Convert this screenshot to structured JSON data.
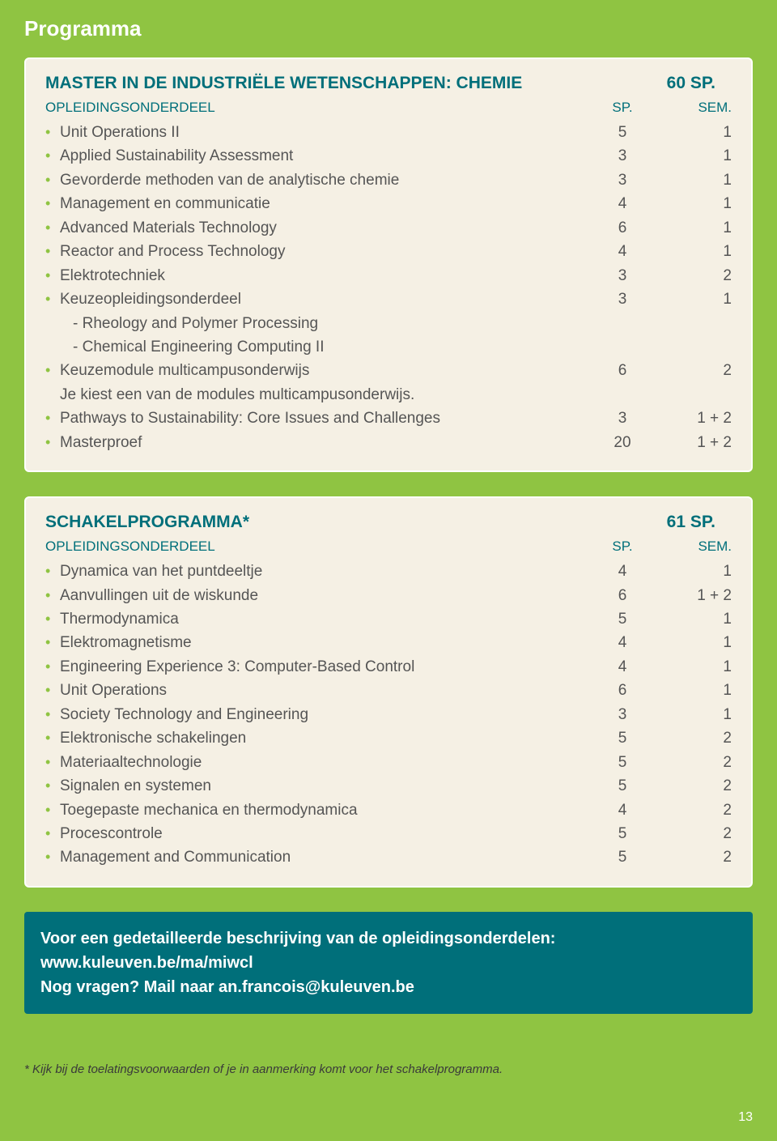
{
  "page_title": "Programma",
  "colors": {
    "background": "#8fc442",
    "box_bg": "#f5f0e4",
    "box_border": "#ffffff",
    "accent_teal": "#006f7a",
    "text": "#555555",
    "bullet": "#8fc442"
  },
  "table1": {
    "title": "MASTER IN DE INDUSTRIËLE WETENSCHAPPEN: CHEMIE",
    "title_sp": "60 SP.",
    "header_label": "OPLEIDINGSONDERDEEL",
    "header_sp": "SP.",
    "header_sem": "SEM.",
    "rows": [
      {
        "label": "Unit Operations II",
        "sp": "5",
        "sem": "1"
      },
      {
        "label": "Applied Sustainability Assessment",
        "sp": "3",
        "sem": "1"
      },
      {
        "label": "Gevorderde methoden van de analytische chemie",
        "sp": "3",
        "sem": "1"
      },
      {
        "label": "Management en communicatie",
        "sp": "4",
        "sem": "1"
      },
      {
        "label": "Advanced Materials Technology",
        "sp": "6",
        "sem": "1"
      },
      {
        "label": "Reactor and Process Technology",
        "sp": "4",
        "sem": "1"
      },
      {
        "label": "Elektrotechniek",
        "sp": "3",
        "sem": "2"
      },
      {
        "label": "Keuzeopleidingsonderdeel",
        "sp": "3",
        "sem": "1",
        "sub": [
          "- Rheology and Polymer Processing",
          "- Chemical Engineering Computing II"
        ]
      },
      {
        "label": "Keuzemodule multicampusonderwijs",
        "sp": "6",
        "sem": "2",
        "after": "Je kiest een van de modules multicampusonderwijs."
      },
      {
        "label": "Pathways to Sustainability: Core Issues and Challenges",
        "sp": "3",
        "sem": "1 + 2"
      },
      {
        "label": "Masterproef",
        "sp": "20",
        "sem": "1 + 2"
      }
    ]
  },
  "table2": {
    "title": "SCHAKELPROGRAMMA*",
    "title_sp": "61 SP.",
    "header_label": "OPLEIDINGSONDERDEEL",
    "header_sp": "SP.",
    "header_sem": "SEM.",
    "rows": [
      {
        "label": "Dynamica van het puntdeeltje",
        "sp": "4",
        "sem": "1"
      },
      {
        "label": "Aanvullingen uit de wiskunde",
        "sp": "6",
        "sem": "1 + 2"
      },
      {
        "label": "Thermodynamica",
        "sp": "5",
        "sem": "1"
      },
      {
        "label": "Elektromagnetisme",
        "sp": "4",
        "sem": "1"
      },
      {
        "label": "Engineering Experience 3: Computer-Based Control",
        "sp": "4",
        "sem": "1"
      },
      {
        "label": "Unit Operations",
        "sp": "6",
        "sem": "1"
      },
      {
        "label": "Society Technology and Engineering",
        "sp": "3",
        "sem": "1"
      },
      {
        "label": "Elektronische schakelingen",
        "sp": "5",
        "sem": "2"
      },
      {
        "label": "Materiaaltechnologie",
        "sp": "5",
        "sem": "2"
      },
      {
        "label": "Signalen en systemen",
        "sp": "5",
        "sem": "2"
      },
      {
        "label": "Toegepaste mechanica en thermodynamica",
        "sp": "4",
        "sem": "2"
      },
      {
        "label": "Procescontrole",
        "sp": "5",
        "sem": "2"
      },
      {
        "label": "Management and Communication",
        "sp": "5",
        "sem": "2"
      }
    ]
  },
  "info": {
    "line1": "Voor een gedetailleerde beschrijving van de opleidingsonderdelen:",
    "url": "www.kuleuven.be/ma/miwcl",
    "line2": "Nog vragen? Mail naar an.francois@kuleuven.be"
  },
  "footnote": "* Kijk bij de toelatingsvoorwaarden of je in aanmerking komt voor het schakelprogramma.",
  "page_num": "13"
}
